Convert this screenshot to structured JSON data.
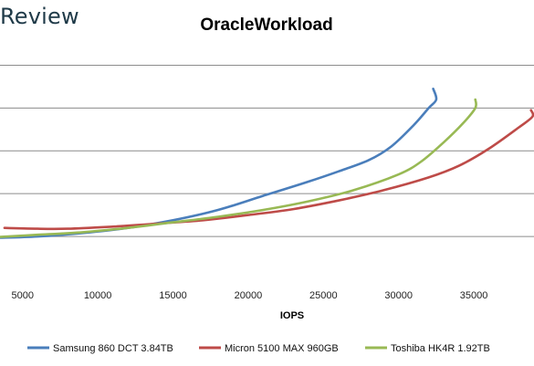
{
  "brand": {
    "text": "Review"
  },
  "chart_data": {
    "type": "line",
    "title": "OracleWorkload",
    "xlabel": "IOPS",
    "ylabel": "",
    "xlim": [
      3500,
      39000
    ],
    "ylim": [
      0,
      5.5
    ],
    "xticks": [
      5000,
      10000,
      15000,
      20000,
      25000,
      30000,
      35000
    ],
    "ygrid": [
      1,
      2,
      3,
      4,
      5
    ],
    "grid": true,
    "legend": "bottom",
    "series": [
      {
        "name": "Samsung 860 DCT 3.84TB",
        "color": "#4a7ebb",
        "points": [
          [
            3500,
            0.97
          ],
          [
            6000,
            1.0
          ],
          [
            9000,
            1.08
          ],
          [
            12000,
            1.2
          ],
          [
            15000,
            1.38
          ],
          [
            18000,
            1.62
          ],
          [
            21000,
            1.95
          ],
          [
            24000,
            2.28
          ],
          [
            26000,
            2.52
          ],
          [
            28000,
            2.78
          ],
          [
            29500,
            3.1
          ],
          [
            31000,
            3.6
          ],
          [
            32000,
            4.0
          ],
          [
            32500,
            4.2
          ],
          [
            32300,
            4.45
          ]
        ]
      },
      {
        "name": "Micron 5100 MAX 960GB",
        "color": "#be4b48",
        "points": [
          [
            3800,
            1.2
          ],
          [
            6000,
            1.18
          ],
          [
            8000,
            1.18
          ],
          [
            11000,
            1.23
          ],
          [
            14000,
            1.3
          ],
          [
            17000,
            1.38
          ],
          [
            20000,
            1.5
          ],
          [
            23000,
            1.64
          ],
          [
            26000,
            1.84
          ],
          [
            29000,
            2.08
          ],
          [
            32000,
            2.38
          ],
          [
            34000,
            2.65
          ],
          [
            36000,
            3.05
          ],
          [
            38000,
            3.55
          ],
          [
            38900,
            3.8
          ],
          [
            38800,
            3.95
          ]
        ]
      },
      {
        "name": "Toshiba HK4R 1.92TB",
        "color": "#98b954",
        "points": [
          [
            3500,
            0.99
          ],
          [
            6000,
            1.04
          ],
          [
            9000,
            1.1
          ],
          [
            12000,
            1.2
          ],
          [
            15000,
            1.33
          ],
          [
            18000,
            1.46
          ],
          [
            21000,
            1.62
          ],
          [
            24000,
            1.82
          ],
          [
            27000,
            2.08
          ],
          [
            30000,
            2.45
          ],
          [
            31500,
            2.75
          ],
          [
            33000,
            3.2
          ],
          [
            34300,
            3.65
          ],
          [
            35100,
            4.0
          ],
          [
            35100,
            4.2
          ]
        ]
      }
    ]
  }
}
